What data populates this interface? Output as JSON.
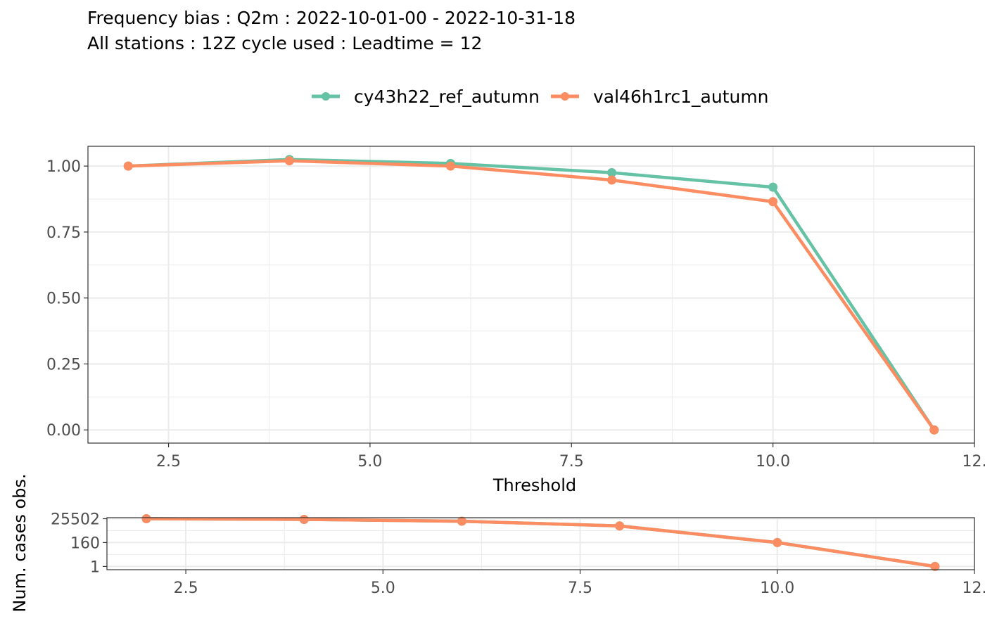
{
  "title": {
    "line1": "Frequency bias : Q2m : 2022-10-01-00 - 2022-10-31-18",
    "line2": "All stations : 12Z cycle used : Leadtime = 12"
  },
  "legend": [
    {
      "name": "cy43h22_ref_autumn",
      "color": "#66c2a5"
    },
    {
      "name": "val46h1rc1_autumn",
      "color": "#fc8d62"
    }
  ],
  "chart_data": [
    {
      "type": "line",
      "xlabel": "Threshold",
      "ylabel": "",
      "xlim": [
        1.5,
        12.5
      ],
      "ylim": [
        -0.05,
        1.075
      ],
      "x_ticks": [
        "2.5",
        "5.0",
        "7.5",
        "10.0",
        "12."
      ],
      "y_ticks": [
        "0.00",
        "0.25",
        "0.50",
        "0.75",
        "1.00"
      ],
      "x": [
        2,
        4,
        6,
        8,
        10,
        12
      ],
      "series": [
        {
          "name": "cy43h22_ref_autumn",
          "color": "#66c2a5",
          "values": [
            1.0,
            1.025,
            1.01,
            0.975,
            0.92,
            0.0
          ]
        },
        {
          "name": "val46h1rc1_autumn",
          "color": "#fc8d62",
          "values": [
            1.0,
            1.02,
            1.0,
            0.947,
            0.865,
            0.0
          ]
        }
      ],
      "grid": true,
      "legend_position": "top"
    },
    {
      "type": "line",
      "xlabel": "",
      "ylabel": "Num. cases obs.",
      "y_scale": "log",
      "xlim": [
        1.5,
        12.5
      ],
      "x_ticks": [
        "2.5",
        "5.0",
        "7.5",
        "10.0",
        "12."
      ],
      "y_ticks": [
        "25502",
        "160",
        "1"
      ],
      "x": [
        2,
        4,
        6,
        8,
        10,
        12
      ],
      "series": [
        {
          "name": "cy43h22_ref_autumn",
          "color": "#66c2a5",
          "values": [
            25502,
            22000,
            15000,
            5500,
            160,
            1
          ]
        },
        {
          "name": "val46h1rc1_autumn",
          "color": "#fc8d62",
          "values": [
            25502,
            22000,
            15000,
            5500,
            160,
            1
          ]
        }
      ],
      "grid": true
    }
  ]
}
